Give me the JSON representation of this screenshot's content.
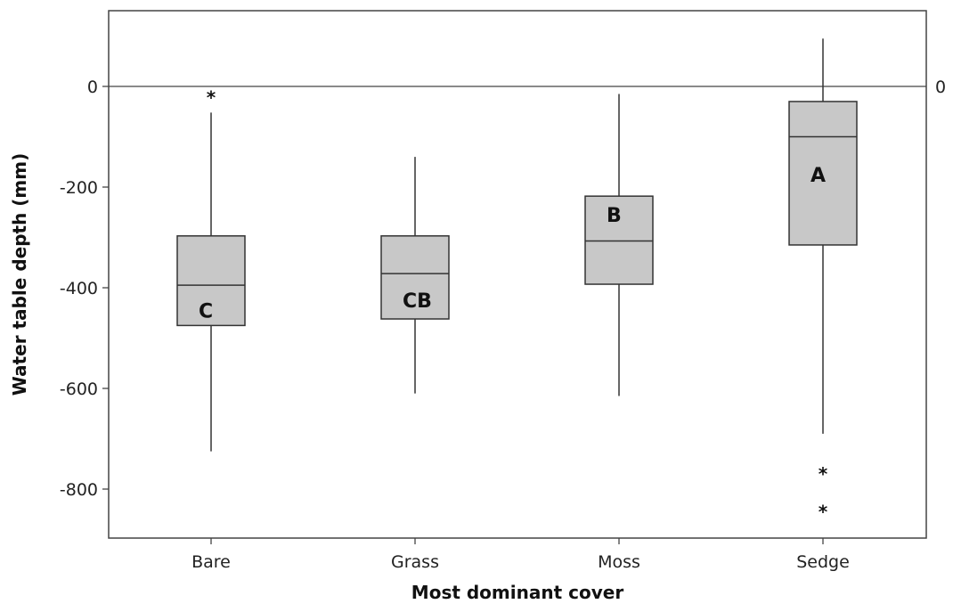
{
  "chart_data": {
    "type": "box",
    "xlabel": "Most dominant cover",
    "ylabel": "Water table depth (mm)",
    "ylim": [
      -900,
      150
    ],
    "yticks": [
      0,
      -200,
      -400,
      -600,
      -800
    ],
    "reference_line": {
      "y": 0,
      "label": "0"
    },
    "grid": false,
    "categories": [
      "Bare",
      "Grass",
      "Moss",
      "Sedge"
    ],
    "boxes": [
      {
        "category": "Bare",
        "whisker_low": -725,
        "q1": -475,
        "median": -395,
        "q3": -297,
        "whisker_high": -52,
        "outliers": [
          -20
        ],
        "letter": "C",
        "letter_y": -445
      },
      {
        "category": "Grass",
        "whisker_low": -610,
        "q1": -462,
        "median": -372,
        "q3": -297,
        "whisker_high": -140,
        "outliers": [],
        "letter": "CB",
        "letter_y": -425
      },
      {
        "category": "Moss",
        "whisker_low": -615,
        "q1": -393,
        "median": -307,
        "q3": -218,
        "whisker_high": -15,
        "outliers": [],
        "letter": "B",
        "letter_y": -255
      },
      {
        "category": "Sedge",
        "whisker_low": -690,
        "q1": -315,
        "median": -100,
        "q3": -30,
        "whisker_high": 95,
        "outliers": [
          -768,
          -843
        ],
        "letter": "A",
        "letter_y": -175
      }
    ],
    "box_fill": "#c8c8c8",
    "line_color": "#333333"
  }
}
